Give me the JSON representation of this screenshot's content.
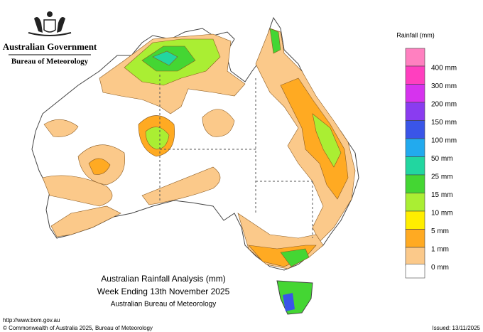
{
  "header": {
    "government": "Australian Government",
    "agency": "Bureau of Meteorology"
  },
  "legend": {
    "title": "Rainfall (mm)",
    "items": [
      {
        "label": "400 mm",
        "color": "#ff3fbf"
      },
      {
        "label": "300 mm",
        "color": "#d633ee"
      },
      {
        "label": "200 mm",
        "color": "#8a3cf0"
      },
      {
        "label": "150 mm",
        "color": "#3a55e8"
      },
      {
        "label": "100 mm",
        "color": "#22aaee"
      },
      {
        "label": "50 mm",
        "color": "#22d6a0"
      },
      {
        "label": "25 mm",
        "color": "#44d633"
      },
      {
        "label": "15 mm",
        "color": "#aaee33"
      },
      {
        "label": "10 mm",
        "color": "#ffee00"
      },
      {
        "label": "5 mm",
        "color": "#ffaa22"
      },
      {
        "label": "1 mm",
        "color": "#fbc98a"
      },
      {
        "label": "0 mm",
        "color": "#ffffff"
      }
    ]
  },
  "map": {
    "title": "Australian Rainfall Analysis (mm)",
    "subtitle": "Week Ending 13th November 2025",
    "source": "Australian Bureau of Meteorology"
  },
  "footer": {
    "url": "http://www.bom.gov.au",
    "copyright": "© Commonwealth of Australia 2025, Bureau of Meteorology",
    "issued": "Issued: 13/11/2025"
  }
}
